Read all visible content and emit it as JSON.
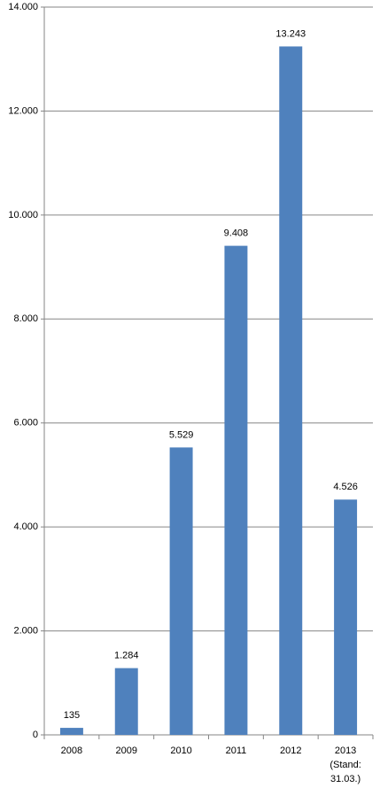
{
  "chart_data": {
    "type": "bar",
    "categories": [
      "2008",
      "2009",
      "2010",
      "2011",
      "2012",
      "2013 (Stand: 31.03.)"
    ],
    "values": [
      135,
      1284,
      5529,
      9408,
      13243,
      4526
    ],
    "value_labels": [
      "135",
      "1.284",
      "5.529",
      "9.408",
      "13.243",
      "4.526"
    ],
    "color": "#4f81bd",
    "ylim": [
      0,
      14000
    ],
    "yticks": [
      0,
      {
        "value": 2000,
        "label": "2.000"
      },
      {
        "value": 4000,
        "label": "4.000"
      },
      {
        "value": 6000,
        "label": "6.000"
      },
      {
        "value": 8000,
        "label": "8.000"
      },
      {
        "value": 10000,
        "label": "10.000"
      },
      {
        "value": 12000,
        "label": "12.000"
      },
      {
        "value": 14000,
        "label": "14.000"
      }
    ],
    "grid": true
  }
}
